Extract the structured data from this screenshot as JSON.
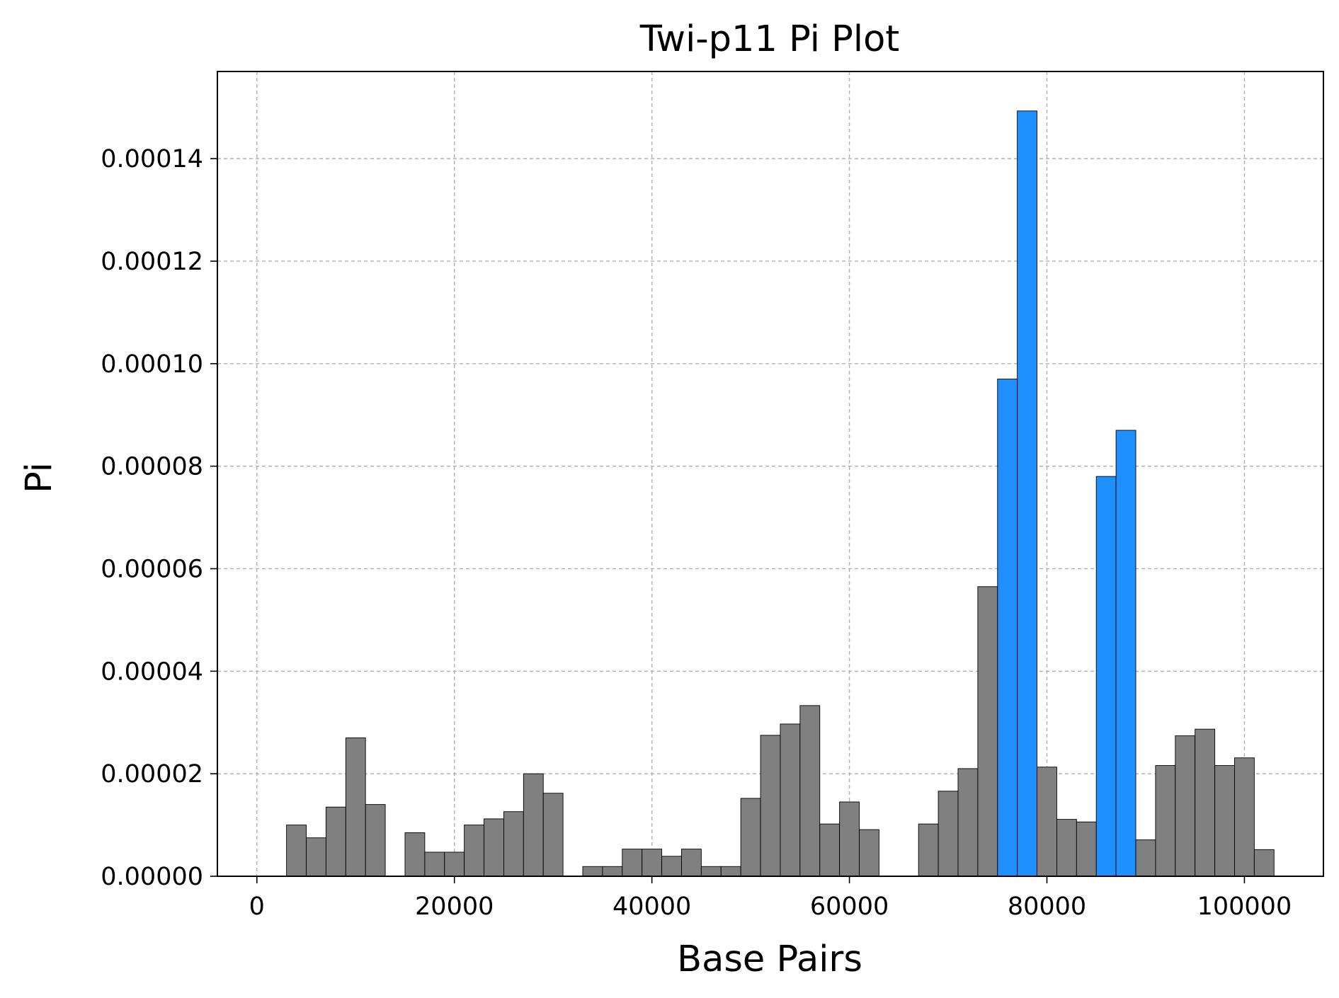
{
  "chart_data": {
    "type": "bar",
    "title": "Twi-p11 Pi Plot",
    "xlabel": "Base Pairs",
    "ylabel": "Pi",
    "xlim": [
      -4000,
      108000
    ],
    "ylim": [
      0,
      0.000157
    ],
    "xticks": [
      0,
      20000,
      40000,
      60000,
      80000,
      100000
    ],
    "xtick_labels": [
      "0",
      "20000",
      "40000",
      "60000",
      "80000",
      "100000"
    ],
    "yticks": [
      0,
      2e-05,
      4e-05,
      6e-05,
      8e-05,
      0.0001,
      0.00012,
      0.00014
    ],
    "ytick_labels": [
      "0.00000",
      "0.00002",
      "0.00004",
      "0.00006",
      "0.00008",
      "0.00010",
      "0.00012",
      "0.00014"
    ],
    "grid": true,
    "bin_width": 2000,
    "colors": {
      "normal": "#808080",
      "highlight": "#1e90ff",
      "edge": "#000000",
      "grid": "#b0b0b0"
    },
    "bars": [
      {
        "x": 4000,
        "y": 1e-05,
        "highlight": false
      },
      {
        "x": 6000,
        "y": 7.5e-06,
        "highlight": false
      },
      {
        "x": 8000,
        "y": 1.35e-05,
        "highlight": false
      },
      {
        "x": 10000,
        "y": 2.7e-05,
        "highlight": false
      },
      {
        "x": 12000,
        "y": 1.4e-05,
        "highlight": false
      },
      {
        "x": 16000,
        "y": 8.5e-06,
        "highlight": false
      },
      {
        "x": 18000,
        "y": 4.7e-06,
        "highlight": false
      },
      {
        "x": 20000,
        "y": 4.7e-06,
        "highlight": false
      },
      {
        "x": 22000,
        "y": 1e-05,
        "highlight": false
      },
      {
        "x": 24000,
        "y": 1.12e-05,
        "highlight": false
      },
      {
        "x": 26000,
        "y": 1.26e-05,
        "highlight": false
      },
      {
        "x": 28000,
        "y": 2e-05,
        "highlight": false
      },
      {
        "x": 30000,
        "y": 1.62e-05,
        "highlight": false
      },
      {
        "x": 34000,
        "y": 1.9e-06,
        "highlight": false
      },
      {
        "x": 36000,
        "y": 1.9e-06,
        "highlight": false
      },
      {
        "x": 38000,
        "y": 5.3e-06,
        "highlight": false
      },
      {
        "x": 40000,
        "y": 5.3e-06,
        "highlight": false
      },
      {
        "x": 42000,
        "y": 3.9e-06,
        "highlight": false
      },
      {
        "x": 44000,
        "y": 5.3e-06,
        "highlight": false
      },
      {
        "x": 46000,
        "y": 1.9e-06,
        "highlight": false
      },
      {
        "x": 48000,
        "y": 1.9e-06,
        "highlight": false
      },
      {
        "x": 50000,
        "y": 1.52e-05,
        "highlight": false
      },
      {
        "x": 52000,
        "y": 2.75e-05,
        "highlight": false
      },
      {
        "x": 54000,
        "y": 2.97e-05,
        "highlight": false
      },
      {
        "x": 56000,
        "y": 3.33e-05,
        "highlight": false
      },
      {
        "x": 58000,
        "y": 1.02e-05,
        "highlight": false
      },
      {
        "x": 60000,
        "y": 1.45e-05,
        "highlight": false
      },
      {
        "x": 62000,
        "y": 9.1e-06,
        "highlight": false
      },
      {
        "x": 68000,
        "y": 1.02e-05,
        "highlight": false
      },
      {
        "x": 70000,
        "y": 1.66e-05,
        "highlight": false
      },
      {
        "x": 72000,
        "y": 2.1e-05,
        "highlight": false
      },
      {
        "x": 74000,
        "y": 5.65e-05,
        "highlight": false
      },
      {
        "x": 76000,
        "y": 9.7e-05,
        "highlight": true
      },
      {
        "x": 78000,
        "y": 0.0001493,
        "highlight": true
      },
      {
        "x": 80000,
        "y": 2.13e-05,
        "highlight": false
      },
      {
        "x": 82000,
        "y": 1.11e-05,
        "highlight": false
      },
      {
        "x": 84000,
        "y": 1.06e-05,
        "highlight": false
      },
      {
        "x": 86000,
        "y": 7.8e-05,
        "highlight": true
      },
      {
        "x": 88000,
        "y": 8.7e-05,
        "highlight": true
      },
      {
        "x": 90000,
        "y": 7.1e-06,
        "highlight": false
      },
      {
        "x": 92000,
        "y": 2.16e-05,
        "highlight": false
      },
      {
        "x": 94000,
        "y": 2.74e-05,
        "highlight": false
      },
      {
        "x": 96000,
        "y": 2.87e-05,
        "highlight": false
      },
      {
        "x": 98000,
        "y": 2.16e-05,
        "highlight": false
      },
      {
        "x": 100000,
        "y": 2.31e-05,
        "highlight": false
      },
      {
        "x": 102000,
        "y": 5.2e-06,
        "highlight": false
      }
    ]
  }
}
